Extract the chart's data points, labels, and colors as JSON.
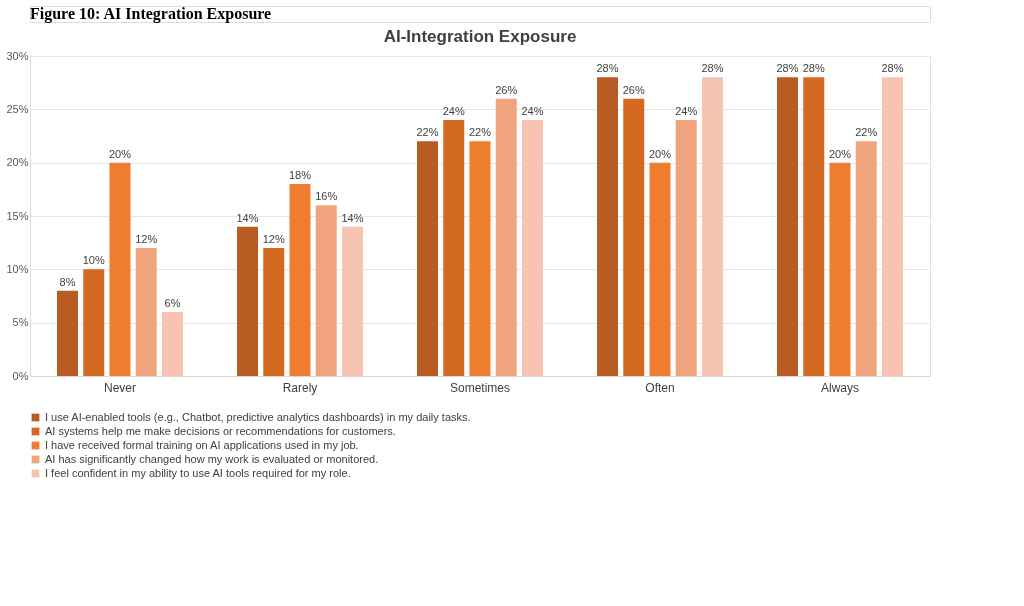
{
  "chart_data": {
    "type": "bar",
    "title": "AI-Integration Exposure",
    "annotations": [
      "Figure 10: AI Integration Exposure"
    ],
    "categories": [
      "Never",
      "Rarely",
      "Sometimes",
      "Often",
      "Always"
    ],
    "series": [
      {
        "name": "I use AI-enabled tools (e.g., Chatbot, predictive analytics dashboards) in my daily tasks.",
        "color": "#b85c24",
        "values": [
          8,
          14,
          22,
          28,
          28
        ],
        "value_labels": [
          "8%",
          "14%",
          "22%",
          "28%",
          "28%"
        ]
      },
      {
        "name": "AI systems help me make decisions or recommendations for customers.",
        "color": "#d46a22",
        "values": [
          10,
          12,
          24,
          26,
          28
        ],
        "value_labels": [
          "10%",
          "12%",
          "24%",
          "26%",
          "28%"
        ]
      },
      {
        "name": "I have received formal training on AI applications used in my job.",
        "color": "#ee7d30",
        "values": [
          20,
          18,
          22,
          20,
          20
        ],
        "value_labels": [
          "20%",
          "18%",
          "22%",
          "20%",
          "20%"
        ]
      },
      {
        "name": "AI has significantly changed how my work is evaluated or monitored.",
        "color": "#f0a47e",
        "values": [
          12,
          16,
          26,
          24,
          22
        ],
        "value_labels": [
          "12%",
          "16%",
          "26%",
          "24%",
          "22%"
        ]
      },
      {
        "name": "I feel confident in my ability to use AI tools required for my role.",
        "color": "#f6c4b0",
        "values": [
          6,
          14,
          24,
          28,
          28
        ],
        "value_labels": [
          "6%",
          "14%",
          "24%",
          "28%",
          "28%"
        ]
      }
    ],
    "ylim": [
      0,
      30
    ],
    "yticks": [
      {
        "value": 0,
        "label": "0%"
      },
      {
        "value": 5,
        "label": "5%"
      },
      {
        "value": 10,
        "label": "10%"
      },
      {
        "value": 15,
        "label": "15%"
      },
      {
        "value": 20,
        "label": "20%"
      },
      {
        "value": 25,
        "label": "25%"
      },
      {
        "value": 30,
        "label": "30%"
      }
    ],
    "grid": "y",
    "legend": "bottom"
  }
}
